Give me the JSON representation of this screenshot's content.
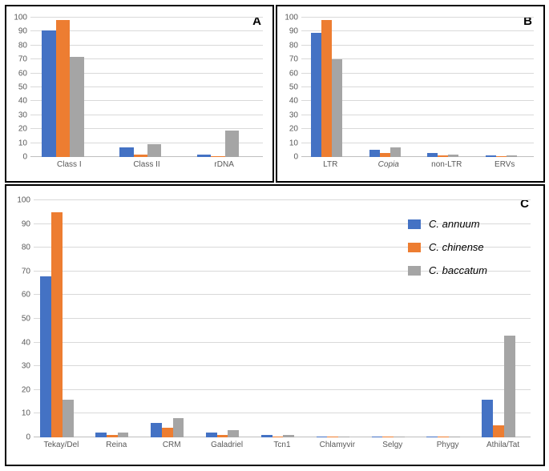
{
  "colors": {
    "series1": "#4472c4",
    "series2": "#ed7d31",
    "series3": "#a5a5a5",
    "grid": "#d9d9d9",
    "axis_text": "#595959",
    "border": "#000000",
    "background": "#ffffff"
  },
  "series_names": {
    "s1": "C. annuum",
    "s2": "C. chinense",
    "s3": "C. baccatum"
  },
  "ylim": [
    0,
    100
  ],
  "ytick_step": 10,
  "panels": {
    "A": {
      "label": "A",
      "label_fontsize": 15,
      "categories": [
        "Class I",
        "Class II",
        "rDNA"
      ],
      "values": {
        "s1": [
          91,
          7,
          2
        ],
        "s2": [
          98,
          2,
          0.5
        ],
        "s3": [
          72,
          9,
          19
        ]
      }
    },
    "B": {
      "label": "B",
      "label_fontsize": 15,
      "categories": [
        "LTR",
        "Copia",
        "non-LTR",
        "ERVs"
      ],
      "category_italic": [
        false,
        true,
        false,
        false
      ],
      "values": {
        "s1": [
          89,
          5,
          3,
          1
        ],
        "s2": [
          98,
          3,
          1,
          0.5
        ],
        "s3": [
          70,
          7,
          2,
          1
        ]
      }
    },
    "C": {
      "label": "C",
      "label_fontsize": 15,
      "categories": [
        "Tekay/Del",
        "Reina",
        "CRM",
        "Galadriel",
        "Tcn1",
        "Chlamyvir",
        "Selgy",
        "Phygy",
        "Athila/Tat"
      ],
      "values": {
        "s1": [
          68,
          2,
          6,
          2,
          1,
          0.5,
          0.5,
          0.5,
          16
        ],
        "s2": [
          95,
          1,
          4,
          1,
          0.5,
          0.3,
          0.3,
          0.5,
          5
        ],
        "s3": [
          16,
          2,
          8,
          3,
          1,
          0.5,
          0.5,
          0.5,
          43
        ]
      }
    }
  }
}
